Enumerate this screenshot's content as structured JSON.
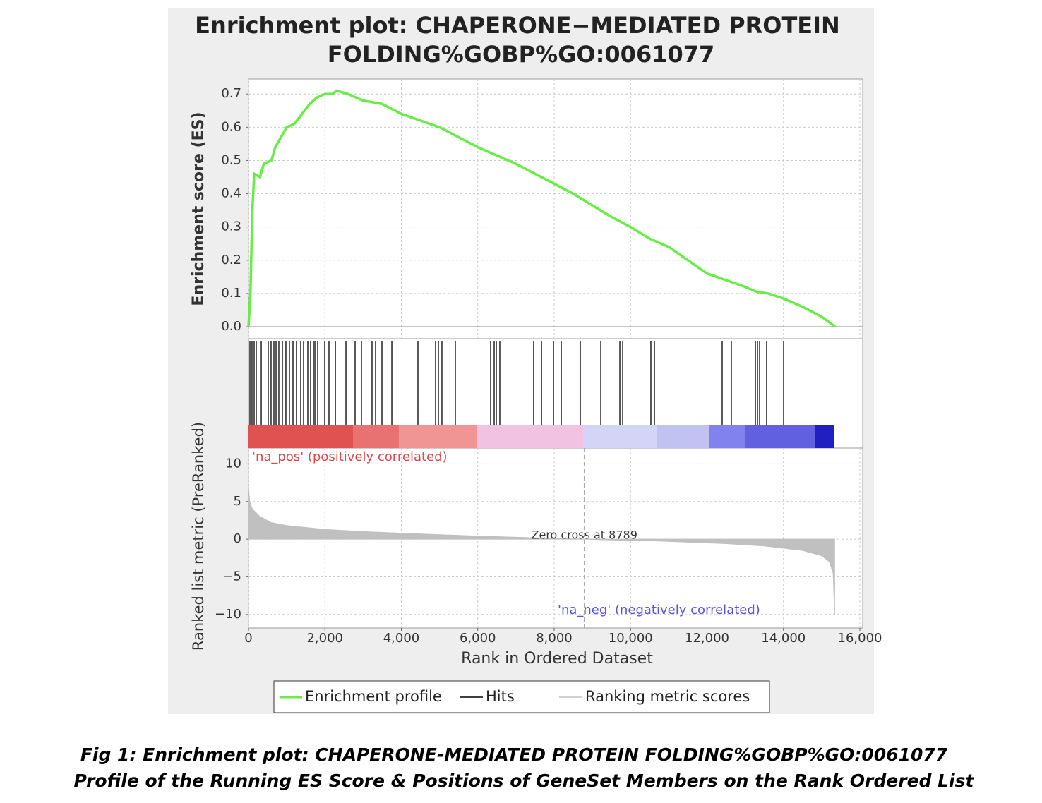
{
  "chart_data": [
    {
      "type": "line",
      "title": [
        "Enrichment plot: CHAPERONE−MEDIATED PROTEIN",
        "FOLDING%GOBP%GO:0061077"
      ],
      "ylabel": "Enrichment score (ES)",
      "xlim": [
        0,
        16074
      ],
      "ylim": [
        -0.036,
        0.745
      ],
      "yticks": [
        {
          "value": 0,
          "label": "0.0"
        },
        0.1,
        0.2,
        0.3,
        0.4,
        0.5,
        0.6,
        0.7
      ],
      "grid": true,
      "series": [
        {
          "name": "Enrichment profile",
          "color": "#66ee44",
          "x": [
            0,
            50,
            100,
            150,
            300,
            400,
            600,
            700,
            900,
            1000,
            1200,
            1400,
            1600,
            1800,
            2000,
            2200,
            2300,
            2600,
            3000,
            3500,
            4000,
            4500,
            5000,
            5500,
            6000,
            6500,
            7000,
            7500,
            8000,
            8500,
            9000,
            9500,
            10000,
            10500,
            11000,
            11500,
            12000,
            12500,
            13000,
            13300,
            13600,
            14000,
            14500,
            15000,
            15353
          ],
          "values": [
            0,
            0.1,
            0.35,
            0.46,
            0.45,
            0.49,
            0.5,
            0.54,
            0.58,
            0.6,
            0.61,
            0.64,
            0.67,
            0.69,
            0.7,
            0.7,
            0.71,
            0.7,
            0.68,
            0.67,
            0.64,
            0.62,
            0.6,
            0.57,
            0.54,
            0.515,
            0.49,
            0.46,
            0.43,
            0.4,
            0.365,
            0.33,
            0.3,
            0.265,
            0.24,
            0.2,
            0.16,
            0.14,
            0.12,
            0.105,
            0.1,
            0.085,
            0.06,
            0.03,
            0
          ]
        }
      ]
    },
    {
      "type": "rug",
      "xlim": [
        0,
        16074
      ],
      "series": [
        {
          "name": "Hits",
          "color": "#000000",
          "x": [
            37,
            92,
            148,
            203,
            333,
            517,
            591,
            665,
            721,
            794,
            887,
            979,
            1071,
            1164,
            1256,
            1367,
            1441,
            1552,
            1626,
            1718,
            1755,
            1811,
            1995,
            2106,
            2273,
            2550,
            2790,
            2956,
            3233,
            3326,
            3492,
            3751,
            4434,
            4896,
            4970,
            5062,
            5413,
            6337,
            6430,
            6485,
            6577,
            7464,
            7668,
            7982,
            8185,
            8684,
            9220,
            9719,
            9793,
            10531,
            10624,
            12397,
            12637,
            13266,
            13321,
            13377,
            13561,
            14005
          ]
        }
      ]
    },
    {
      "type": "area",
      "ylabel": "Ranked list metric (PreRanked)",
      "xlabel": "Rank in Ordered Dataset",
      "xlim": [
        0,
        16074
      ],
      "ylim": [
        -11.8,
        12.1
      ],
      "xticks": [
        0,
        {
          "value": 2000,
          "label": "2,000"
        },
        {
          "value": 4000,
          "label": "4,000"
        },
        {
          "value": 6000,
          "label": "6,000"
        },
        {
          "value": 8000,
          "label": "8,000"
        },
        {
          "value": 10000,
          "label": "10,000"
        },
        {
          "value": 12000,
          "label": "12,000"
        },
        {
          "value": 14000,
          "label": "14,000"
        },
        {
          "value": 16000,
          "label": "16,000"
        }
      ],
      "yticks": [
        10,
        5,
        0,
        {
          "value": -5,
          "label": "−5"
        },
        {
          "value": -10,
          "label": "−10"
        }
      ],
      "grid": true,
      "pos_label": "'na_pos' (positively correlated)",
      "neg_label": "'na_neg' (negatively correlated)",
      "zero_cross": 8789,
      "zero_cross_label": "Zero cross at 8789",
      "series": [
        {
          "name": "Ranking metric scores",
          "color": "#c0c0c0",
          "x": [
            0,
            30,
            100,
            300,
            600,
            1000,
            2000,
            3000,
            4000,
            5000,
            6000,
            7000,
            8000,
            8789,
            9500,
            10500,
            11500,
            12500,
            13500,
            14500,
            15000,
            15200,
            15300,
            15340
          ],
          "values": [
            7,
            5,
            4,
            3,
            2.2,
            1.8,
            1.3,
            1.0,
            0.8,
            0.6,
            0.4,
            0.25,
            0.1,
            0,
            -0.1,
            -0.2,
            -0.4,
            -0.6,
            -0.9,
            -1.5,
            -2.2,
            -3,
            -4.5,
            -10
          ]
        }
      ]
    }
  ],
  "caption": [
    "Fig 1: Enrichment plot: CHAPERONE-MEDIATED PROTEIN FOLDING%GOBP%GO:0061077",
    "Profile of the Running ES Score & Positions of GeneSet Members on the Rank Ordered List"
  ]
}
